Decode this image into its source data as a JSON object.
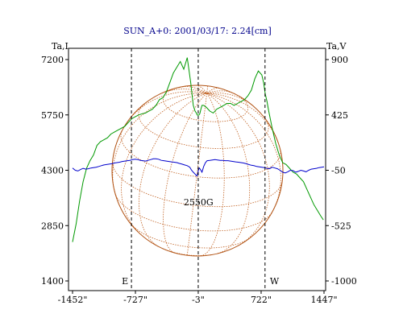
{
  "chart_data": {
    "type": "line",
    "title": "SUN_A+0: 2001/03/17: 2.24[cm]",
    "left_axis_label": "Ta,I",
    "right_axis_label": "Ta,V",
    "x_ticks": [
      "-1452\"",
      "-727\"",
      "-3\"",
      "722\"",
      "1447\""
    ],
    "x_tick_values": [
      -1452,
      -727,
      -3,
      722,
      1447
    ],
    "left_ticks": [
      "7200",
      "5750",
      "4300",
      "2850",
      "1400"
    ],
    "left_tick_values": [
      7200,
      5750,
      4300,
      2850,
      1400
    ],
    "right_ticks": [
      "900",
      "425",
      "-50",
      "-525",
      "-1000"
    ],
    "right_tick_values": [
      900,
      425,
      -50,
      -525,
      -1000
    ],
    "xlim": [
      -1452,
      1447
    ],
    "ylim_left": [
      1400,
      7200
    ],
    "ylim_right": [
      -1000,
      900
    ],
    "grid": false,
    "markers": [
      {
        "label": "E",
        "x": -773
      },
      {
        "label": "",
        "x": -3
      },
      {
        "label": "W",
        "x": 767
      }
    ],
    "annotation": {
      "text": "2550G",
      "x": 0,
      "y_left": 3550
    },
    "series": [
      {
        "axis": "left",
        "color": "#009900",
        "x": [
          -1452,
          -1410,
          -1370,
          -1330,
          -1290,
          -1250,
          -1210,
          -1170,
          -1130,
          -1090,
          -1050,
          -1010,
          -970,
          -930,
          -890,
          -850,
          -810,
          -770,
          -730,
          -690,
          -650,
          -610,
          -570,
          -530,
          -490,
          -450,
          -410,
          -370,
          -330,
          -290,
          -250,
          -210,
          -170,
          -130,
          -90,
          -60,
          -40,
          -25,
          -15,
          -5,
          5,
          15,
          25,
          40,
          60,
          90,
          130,
          170,
          210,
          250,
          290,
          330,
          370,
          410,
          450,
          490,
          530,
          570,
          610,
          650,
          690,
          730,
          750,
          770,
          790,
          810,
          850,
          890,
          930,
          970,
          1010,
          1050,
          1090,
          1130,
          1170,
          1210,
          1250,
          1290,
          1330,
          1370,
          1410,
          1440
        ],
        "values": [
          2420,
          2900,
          3500,
          4000,
          4350,
          4550,
          4700,
          4950,
          5050,
          5100,
          5150,
          5250,
          5300,
          5350,
          5400,
          5450,
          5550,
          5650,
          5700,
          5750,
          5780,
          5800,
          5850,
          5900,
          6000,
          6150,
          6200,
          6350,
          6600,
          6850,
          7000,
          7150,
          6950,
          7250,
          6600,
          6000,
          5850,
          5800,
          5750,
          5740,
          5750,
          5780,
          5880,
          6000,
          6000,
          5950,
          5850,
          5800,
          5900,
          5950,
          6000,
          6050,
          6050,
          6000,
          6050,
          6100,
          6150,
          6250,
          6400,
          6700,
          6900,
          6800,
          6600,
          6300,
          6100,
          5850,
          5400,
          5000,
          4700,
          4500,
          4450,
          4350,
          4250,
          4200,
          4100,
          4000,
          3800,
          3600,
          3400,
          3250,
          3100,
          3000
        ]
      },
      {
        "axis": "left",
        "color": "#0000cc",
        "x": [
          -1452,
          -1420,
          -1390,
          -1360,
          -1330,
          -1300,
          -1270,
          -1240,
          -1210,
          -1180,
          -1150,
          -1120,
          -1090,
          -1060,
          -1030,
          -1000,
          -970,
          -940,
          -910,
          -880,
          -850,
          -820,
          -790,
          -760,
          -730,
          -700,
          -670,
          -640,
          -610,
          -580,
          -550,
          -520,
          -490,
          -460,
          -430,
          -400,
          -370,
          -340,
          -310,
          -280,
          -250,
          -220,
          -190,
          -160,
          -130,
          -100,
          -80,
          -60,
          -40,
          -20,
          -10,
          0,
          10,
          20,
          40,
          60,
          80,
          100,
          130,
          160,
          190,
          220,
          250,
          280,
          310,
          340,
          370,
          400,
          430,
          460,
          490,
          520,
          550,
          580,
          610,
          640,
          670,
          700,
          730,
          760,
          790,
          820,
          850,
          880,
          910,
          940,
          970,
          1000,
          1030,
          1060,
          1090,
          1120,
          1150,
          1180,
          1210,
          1240,
          1270,
          1300,
          1330,
          1360,
          1390,
          1420,
          1447
        ],
        "values": [
          4360,
          4300,
          4280,
          4320,
          4350,
          4330,
          4340,
          4360,
          4370,
          4380,
          4400,
          4420,
          4440,
          4450,
          4460,
          4470,
          4490,
          4500,
          4510,
          4530,
          4540,
          4550,
          4560,
          4580,
          4590,
          4580,
          4560,
          4550,
          4540,
          4560,
          4580,
          4600,
          4600,
          4590,
          4560,
          4550,
          4540,
          4530,
          4520,
          4510,
          4500,
          4480,
          4460,
          4440,
          4420,
          4380,
          4300,
          4250,
          4200,
          4150,
          4200,
          4310,
          4360,
          4330,
          4250,
          4400,
          4500,
          4550,
          4560,
          4570,
          4580,
          4570,
          4560,
          4560,
          4550,
          4550,
          4540,
          4530,
          4520,
          4510,
          4500,
          4490,
          4470,
          4450,
          4430,
          4420,
          4400,
          4390,
          4380,
          4370,
          4350,
          4340,
          4380,
          4360,
          4340,
          4300,
          4250,
          4230,
          4260,
          4300,
          4290,
          4250,
          4270,
          4300,
          4280,
          4260,
          4300,
          4330,
          4340,
          4350,
          4370,
          4380,
          4390
        ]
      }
    ]
  }
}
